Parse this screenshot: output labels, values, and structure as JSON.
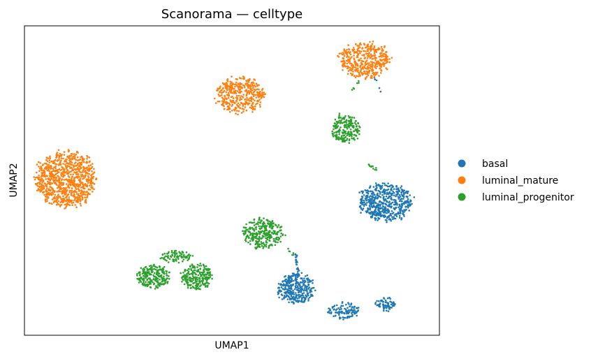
{
  "chart_data": {
    "type": "scatter",
    "title": "Scanorama — celltype",
    "xlabel": "UMAP1",
    "ylabel": "UMAP2",
    "xlim": [
      0,
      100
    ],
    "ylim": [
      0,
      100
    ],
    "ticks": false,
    "grid": false,
    "legend_position": "right",
    "series": [
      {
        "name": "basal",
        "color": "#1f77b4",
        "clusters": [
          {
            "x": 87,
            "y": 43,
            "rx": 6.5,
            "ry": 6.2,
            "n": 560
          },
          {
            "x": 65.5,
            "y": 15,
            "rx": 4.5,
            "ry": 5.0,
            "n": 320
          },
          {
            "x": 77,
            "y": 8,
            "rx": 4.0,
            "ry": 2.8,
            "n": 110
          },
          {
            "x": 87,
            "y": 10,
            "rx": 2.5,
            "ry": 2.2,
            "n": 70
          }
        ],
        "trails": [
          {
            "from": [
              65.5,
              26.5
            ],
            "to": [
              66,
              19
            ],
            "n": 25
          },
          {
            "from": [
              86,
              79
            ],
            "to": [
              84,
              84
            ],
            "n": 5
          }
        ]
      },
      {
        "name": "luminal_mature",
        "color": "#ff7f0e",
        "clusters": [
          {
            "x": 10,
            "y": 50.5,
            "rx": 7.5,
            "ry": 9.0,
            "n": 900
          },
          {
            "x": 52,
            "y": 77.5,
            "rx": 6.0,
            "ry": 6.0,
            "n": 380
          },
          {
            "x": 82,
            "y": 89,
            "rx": 6.2,
            "ry": 5.8,
            "n": 420
          }
        ],
        "trails": []
      },
      {
        "name": "luminal_progenitor",
        "color": "#2ca02c",
        "clusters": [
          {
            "x": 77.5,
            "y": 66.5,
            "rx": 3.5,
            "ry": 4.5,
            "n": 210
          },
          {
            "x": 57.5,
            "y": 33,
            "rx": 5.0,
            "ry": 5.0,
            "n": 300
          },
          {
            "x": 31,
            "y": 19,
            "rx": 4.0,
            "ry": 3.8,
            "n": 230
          },
          {
            "x": 41.5,
            "y": 19,
            "rx": 3.7,
            "ry": 4.3,
            "n": 230
          },
          {
            "x": 36.5,
            "y": 25.5,
            "rx": 4.0,
            "ry": 2.0,
            "n": 90
          }
        ],
        "trails": [
          {
            "from": [
              83,
              55
            ],
            "to": [
              85,
              53.5
            ],
            "n": 10
          },
          {
            "from": [
              81,
              82.5
            ],
            "to": [
              79,
              79.5
            ],
            "n": 6
          },
          {
            "from": [
              63,
              28.5
            ],
            "to": [
              65,
              26
            ],
            "n": 6
          },
          {
            "from": [
              76,
              70
            ],
            "to": [
              76,
              72.5
            ],
            "n": 5
          }
        ]
      }
    ]
  }
}
